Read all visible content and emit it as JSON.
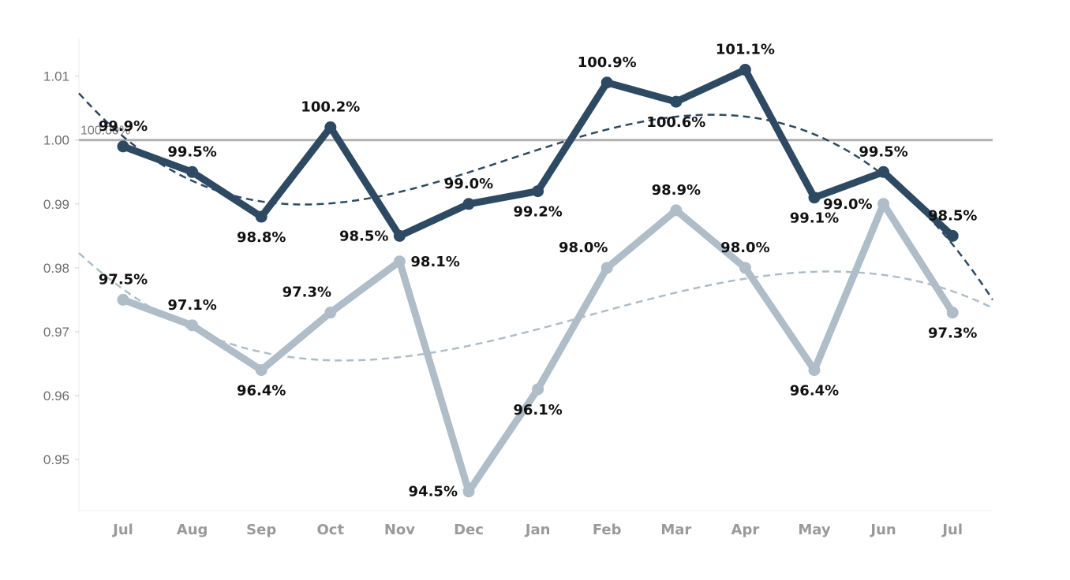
{
  "chart_data": {
    "type": "line",
    "categories": [
      "Jul",
      "Aug",
      "Sep",
      "Oct",
      "Nov",
      "Dec",
      "Jan",
      "Feb",
      "Mar",
      "Apr",
      "May",
      "Jun",
      "Jul"
    ],
    "ylim": [
      0.942,
      1.016
    ],
    "yticks": [
      0.95,
      0.96,
      0.97,
      0.98,
      0.99,
      1.0,
      1.01
    ],
    "ytick_labels": [
      "0.95",
      "0.96",
      "0.97",
      "0.98",
      "0.99",
      "1.00",
      "1.01"
    ],
    "reference_line": {
      "value": 1.0,
      "label": "100.00%",
      "color": "#b0b0b0"
    },
    "grid": false,
    "series": [
      {
        "color": "#2e4a62",
        "values": [
          0.999,
          0.995,
          0.988,
          1.002,
          0.985,
          0.99,
          0.992,
          1.009,
          1.006,
          1.011,
          0.991,
          0.995,
          0.985
        ],
        "labels": [
          "99.9%",
          "99.5%",
          "98.8%",
          "100.2%",
          "98.5%",
          "99.0%",
          "99.2%",
          "100.9%",
          "100.6%",
          "101.1%",
          "99.1%",
          "99.5%",
          "98.5%"
        ],
        "label_pos": [
          "above",
          "above",
          "below",
          "above",
          "left",
          "above",
          "below",
          "above",
          "below",
          "above",
          "below",
          "above",
          "above"
        ],
        "trend": "cubic",
        "trend_color": "#2e4a62"
      },
      {
        "color": "#aebdc8",
        "values": [
          0.975,
          0.971,
          0.964,
          0.973,
          0.981,
          0.945,
          0.961,
          0.98,
          0.989,
          0.98,
          0.964,
          0.99,
          0.973
        ],
        "labels": [
          "97.5%",
          "97.1%",
          "96.4%",
          "97.3%",
          "98.1%",
          "94.5%",
          "96.1%",
          "98.0%",
          "98.9%",
          "98.0%",
          "96.4%",
          "99.0%",
          "97.3%"
        ],
        "label_pos": [
          "above",
          "above",
          "below",
          "aboveleft",
          "right",
          "left",
          "below",
          "aboveleft",
          "above",
          "above",
          "below",
          "left",
          "below"
        ],
        "trend": "cubic",
        "trend_color": "#aebdc8"
      }
    ]
  }
}
